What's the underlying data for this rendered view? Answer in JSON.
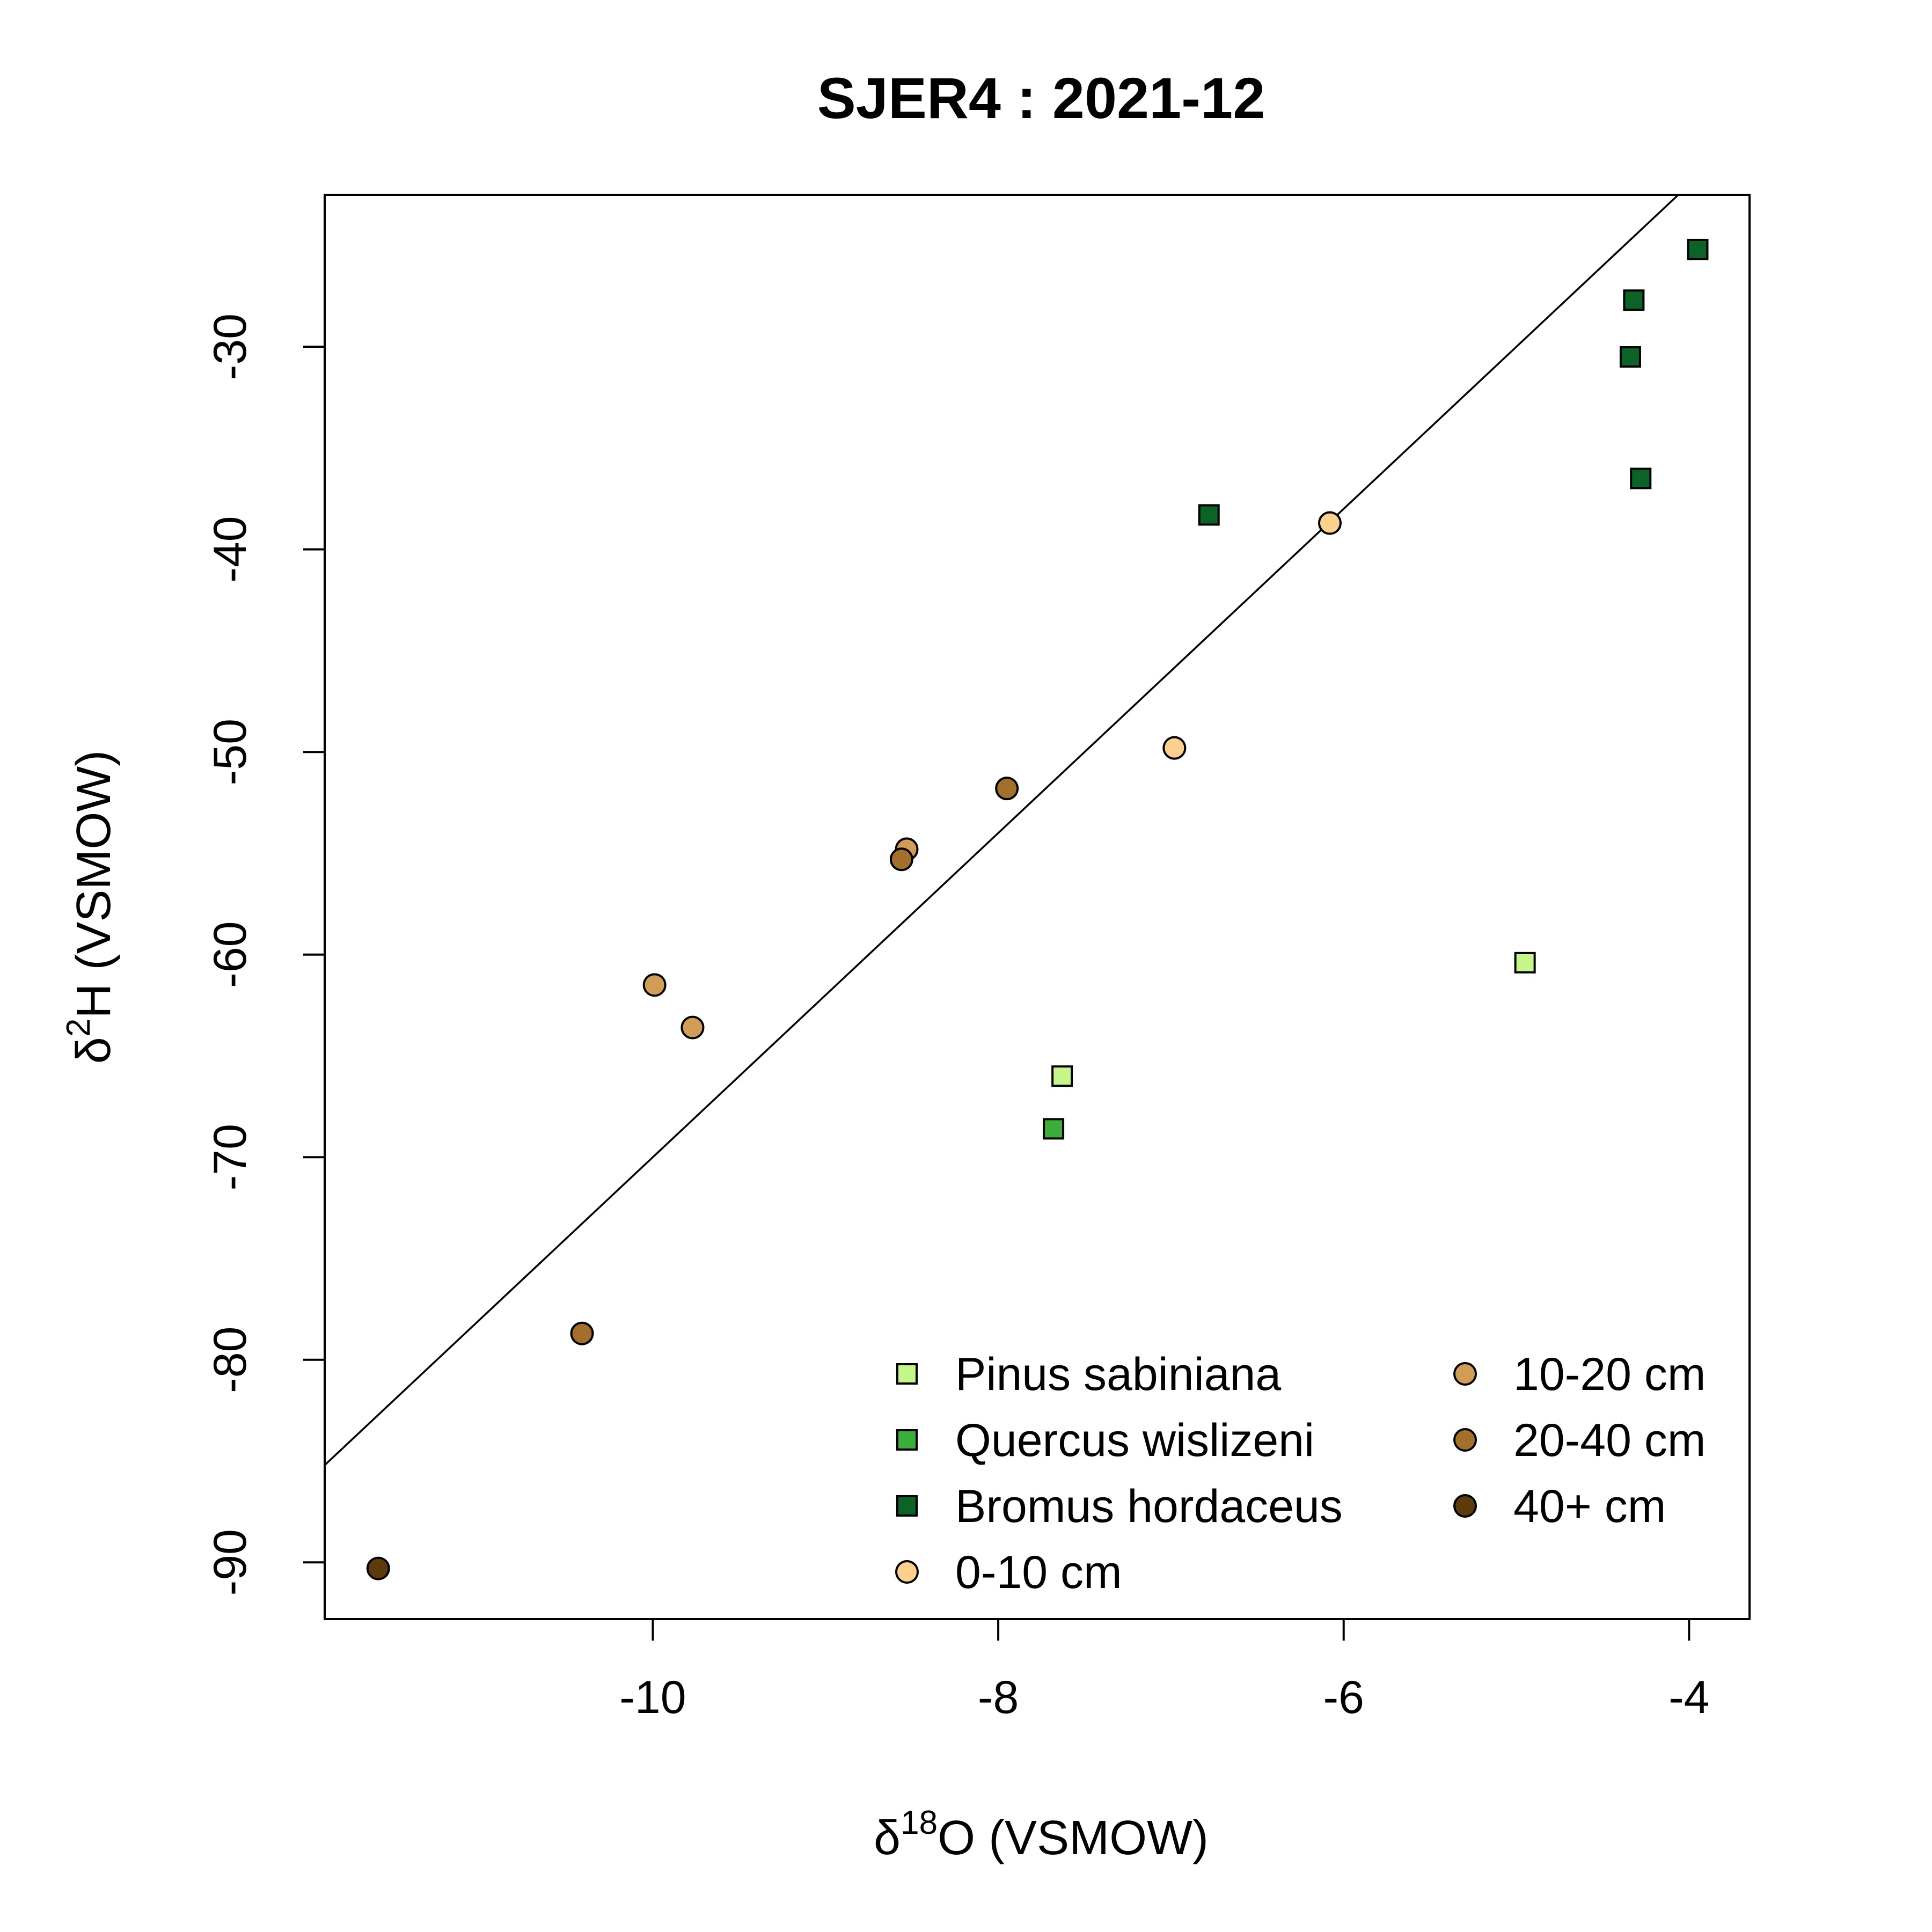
{
  "chart_data": {
    "type": "scatter",
    "title": "SJER4 : 2021-12",
    "xlabel": {
      "prefix": "δ",
      "sup": "18",
      "suffix": "O (VSMOW)"
    },
    "ylabel": {
      "prefix": "δ",
      "sup": "2",
      "suffix": "H (VSMOW)"
    },
    "xlim": [
      -11.9,
      -3.65
    ],
    "ylim": [
      -92.8,
      -22.5
    ],
    "xticks": [
      -10,
      -8,
      -6,
      -4
    ],
    "yticks": [
      -90,
      -80,
      -70,
      -60,
      -50,
      -40,
      -30
    ],
    "xtick_labels": [
      "-10",
      "-8",
      "-6",
      "-4"
    ],
    "ytick_labels": [
      "-90",
      "-80",
      "-70",
      "-60",
      "-50",
      "-40",
      "-30"
    ],
    "reference_line": {
      "slope": 8,
      "intercept": 10
    },
    "legend_position": "bottom-right",
    "series": [
      {
        "name": "Pinus sabiniana",
        "shape": "square",
        "color": "#c6f58a",
        "points": [
          [
            -7.63,
            -66.0
          ],
          [
            -4.95,
            -60.4
          ]
        ]
      },
      {
        "name": "Quercus wislizeni",
        "shape": "square",
        "color": "#3cae3c",
        "points": [
          [
            -7.68,
            -68.6
          ]
        ]
      },
      {
        "name": "Bromus hordaceus",
        "shape": "square",
        "color": "#0b6327",
        "points": [
          [
            -6.78,
            -38.3
          ],
          [
            -4.32,
            -27.7
          ],
          [
            -4.34,
            -30.5
          ],
          [
            -4.28,
            -36.5
          ],
          [
            -3.95,
            -25.2
          ]
        ]
      },
      {
        "name": "0-10 cm",
        "shape": "circle",
        "color": "#fdd08e",
        "points": [
          [
            -6.08,
            -38.7
          ],
          [
            -6.98,
            -49.8
          ]
        ]
      },
      {
        "name": "10-20 cm",
        "shape": "circle",
        "color": "#d19d56",
        "points": [
          [
            -8.53,
            -54.8
          ],
          [
            -9.99,
            -61.5
          ],
          [
            -9.77,
            -63.6
          ]
        ]
      },
      {
        "name": "20-40 cm",
        "shape": "circle",
        "color": "#a2702a",
        "points": [
          [
            -7.95,
            -51.8
          ],
          [
            -8.56,
            -55.3
          ],
          [
            -10.41,
            -78.7
          ]
        ]
      },
      {
        "name": "40+ cm",
        "shape": "circle",
        "color": "#5c3a0c",
        "points": [
          [
            -11.59,
            -90.3
          ]
        ]
      }
    ]
  }
}
